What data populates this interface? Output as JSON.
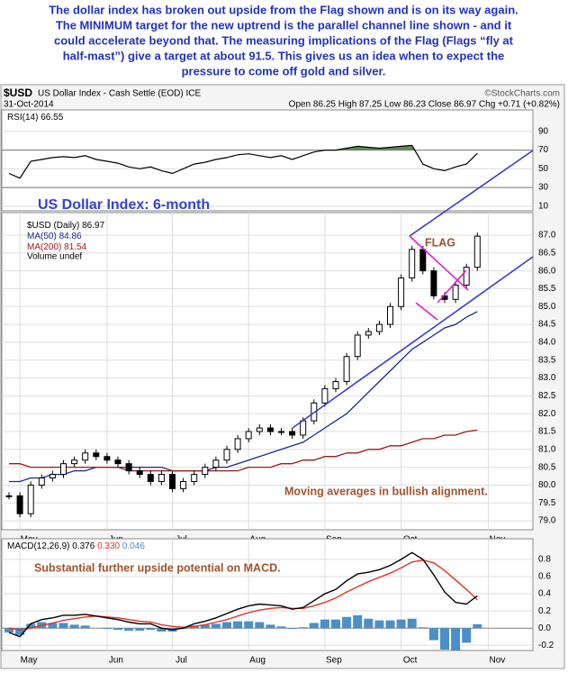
{
  "commentary": [
    "The dollar index has broken out upside from the Flag shown and is on its way again.",
    "The MINIMUM target for the new uptrend is the parallel channel line shown - and it",
    "could accelerate beyond that. The measuring implications of the Flag (Flags “fly at",
    "half-mast”) give a target at about 91.5. This gives us an idea when to expect the",
    "pressure to come off gold and silver."
  ],
  "header": {
    "symbol": "$USD",
    "name": "US Dollar Index - Cash Settle (EOD) ICE",
    "source": "©StockCharts.com",
    "date": "31-Oct-2014",
    "quote": "Open 86.25 High 87.25 Low 86.23 Close 86.97 Chg +0.71 (+0.82%)"
  },
  "chart_data": [
    {
      "type": "rsi",
      "ylim": [
        5,
        113
      ],
      "yticks": [
        10,
        30,
        50,
        70,
        90
      ],
      "series": [
        {
          "name": "RSI(14)",
          "color": "#000000",
          "fill": "#5e8c55",
          "values": [
            45,
            40,
            58,
            60,
            62,
            63,
            62,
            64,
            60,
            58,
            56,
            52,
            50,
            52,
            48,
            45,
            50,
            55,
            57,
            60,
            62,
            65,
            66,
            64,
            62,
            64,
            60,
            64,
            68,
            70,
            70,
            72,
            74,
            73,
            72,
            73,
            74,
            75,
            55,
            50,
            48,
            52,
            55,
            66.55,
            null
          ]
        }
      ]
    },
    {
      "type": "candlestick",
      "title": "US Dollar Index: 6-month",
      "annotations": [
        "FLAG",
        "Moving averages in bullish alignment."
      ],
      "volume_label": "Volume undef",
      "categories": [
        null,
        "May",
        null,
        null,
        null,
        null,
        null,
        null,
        null,
        "Jun",
        null,
        null,
        null,
        null,
        null,
        "Jul",
        null,
        null,
        null,
        null,
        null,
        null,
        "Aug",
        null,
        null,
        null,
        null,
        null,
        null,
        "Sep",
        null,
        null,
        null,
        null,
        null,
        null,
        "Oct",
        null,
        null,
        null,
        null,
        null,
        null,
        null,
        "Nov"
      ],
      "ylim": [
        78.75,
        87.63
      ],
      "grid": true,
      "yticks": [
        {
          "value": 79,
          "label": "79.0"
        },
        79.5,
        {
          "value": 80,
          "label": "80.0"
        },
        80.5,
        {
          "value": 81,
          "label": "81.0"
        },
        81.5,
        {
          "value": 82,
          "label": "82.0"
        },
        82.5,
        {
          "value": 83,
          "label": "83.0"
        },
        83.5,
        {
          "value": 84,
          "label": "84.0"
        },
        84.5,
        {
          "value": 85,
          "label": "85.0"
        },
        85.5,
        {
          "value": 86,
          "label": "86.0"
        },
        86.5,
        {
          "value": 87,
          "label": "87.0"
        }
      ],
      "series": [
        {
          "name": "$USD (Daily)",
          "color": "#000000",
          "values": [
            79.7,
            79.2,
            80.0,
            80.2,
            80.3,
            80.6,
            80.7,
            80.9,
            80.8,
            80.7,
            80.6,
            80.4,
            80.3,
            80.1,
            80.3,
            79.9,
            80.1,
            80.3,
            80.5,
            80.7,
            81.0,
            81.3,
            81.5,
            81.6,
            81.5,
            81.5,
            81.4,
            81.8,
            82.3,
            82.7,
            82.9,
            83.6,
            84.2,
            84.3,
            84.5,
            85.0,
            85.8,
            86.6,
            86.0,
            85.3,
            85.2,
            85.6,
            86.1,
            86.97,
            null
          ]
        },
        {
          "name": "MA(50)",
          "color": "#1a2a8c",
          "values": [
            80.1,
            80.1,
            80.2,
            80.2,
            80.3,
            80.3,
            80.4,
            80.4,
            80.5,
            80.5,
            80.5,
            80.5,
            80.5,
            80.5,
            80.5,
            80.4,
            80.4,
            80.4,
            80.4,
            80.5,
            80.5,
            80.6,
            80.7,
            80.8,
            80.9,
            81.0,
            81.1,
            81.2,
            81.4,
            81.6,
            81.8,
            82.0,
            82.3,
            82.6,
            82.9,
            83.2,
            83.5,
            83.8,
            84.0,
            84.2,
            84.4,
            84.5,
            84.7,
            84.86,
            null
          ]
        },
        {
          "name": "MA(200)",
          "color": "#a01818",
          "values": [
            80.6,
            80.6,
            80.5,
            80.5,
            80.5,
            80.5,
            80.5,
            80.5,
            80.5,
            80.5,
            80.5,
            80.4,
            80.4,
            80.4,
            80.4,
            80.4,
            80.4,
            80.4,
            80.4,
            80.4,
            80.4,
            80.4,
            80.5,
            80.5,
            80.5,
            80.6,
            80.6,
            80.7,
            80.7,
            80.8,
            80.8,
            80.9,
            80.9,
            81.0,
            81.0,
            81.1,
            81.1,
            81.2,
            81.3,
            81.3,
            81.4,
            81.4,
            81.5,
            81.54,
            null
          ]
        }
      ]
    },
    {
      "type": "macd",
      "annotations": [
        "Substantial further upside potential on MACD."
      ],
      "categories": [
        null,
        "May",
        null,
        null,
        null,
        null,
        null,
        null,
        null,
        "Jun",
        null,
        null,
        null,
        null,
        null,
        "Jul",
        null,
        null,
        null,
        null,
        null,
        null,
        "Aug",
        null,
        null,
        null,
        null,
        null,
        null,
        "Sep",
        null,
        null,
        null,
        null,
        null,
        null,
        "Oct",
        null,
        null,
        null,
        null,
        null,
        null,
        null,
        "Nov"
      ],
      "ylim": [
        -0.26,
        1.04
      ],
      "yticks": [
        -0.2,
        {
          "value": 0,
          "label": "0.0"
        },
        0.2,
        0.4,
        0.6,
        0.8
      ],
      "legend_values": [
        "0.376",
        "0.330",
        "0.046"
      ],
      "series": [
        {
          "name": "MACD(12,26,9)",
          "color": "#000000",
          "values": [
            -0.05,
            -0.1,
            0.05,
            0.1,
            0.12,
            0.15,
            0.15,
            0.16,
            0.14,
            0.12,
            0.1,
            0.07,
            0.05,
            0.05,
            0.0,
            -0.02,
            0.0,
            0.05,
            0.08,
            0.12,
            0.17,
            0.22,
            0.26,
            0.28,
            0.27,
            0.26,
            0.22,
            0.24,
            0.32,
            0.4,
            0.45,
            0.55,
            0.63,
            0.65,
            0.68,
            0.73,
            0.8,
            0.88,
            0.8,
            0.62,
            0.42,
            0.3,
            0.28,
            0.376,
            null
          ]
        },
        {
          "color": "#e53020",
          "values": [
            0,
            -0.02,
            0.0,
            0.03,
            0.06,
            0.09,
            0.11,
            0.13,
            0.14,
            0.13,
            0.12,
            0.1,
            0.08,
            0.07,
            0.04,
            0.02,
            0.01,
            0.02,
            0.04,
            0.07,
            0.1,
            0.14,
            0.18,
            0.21,
            0.23,
            0.24,
            0.23,
            0.23,
            0.26,
            0.3,
            0.35,
            0.42,
            0.48,
            0.54,
            0.59,
            0.64,
            0.7,
            0.77,
            0.79,
            0.76,
            0.67,
            0.56,
            0.45,
            0.33,
            null
          ]
        },
        {
          "color": "#4a8fc8",
          "values": [
            -0.05,
            -0.08,
            0.05,
            0.07,
            0.06,
            0.06,
            0.04,
            0.03,
            0.0,
            -0.01,
            -0.02,
            -0.03,
            -0.03,
            -0.02,
            -0.04,
            -0.04,
            -0.01,
            0.03,
            0.04,
            0.05,
            0.07,
            0.08,
            0.08,
            0.07,
            0.04,
            0.02,
            -0.01,
            0.01,
            0.06,
            0.1,
            0.1,
            0.13,
            0.15,
            0.11,
            0.09,
            0.09,
            0.1,
            0.11,
            0.01,
            -0.14,
            -0.25,
            -0.26,
            -0.17,
            0.046,
            null
          ]
        }
      ]
    }
  ]
}
